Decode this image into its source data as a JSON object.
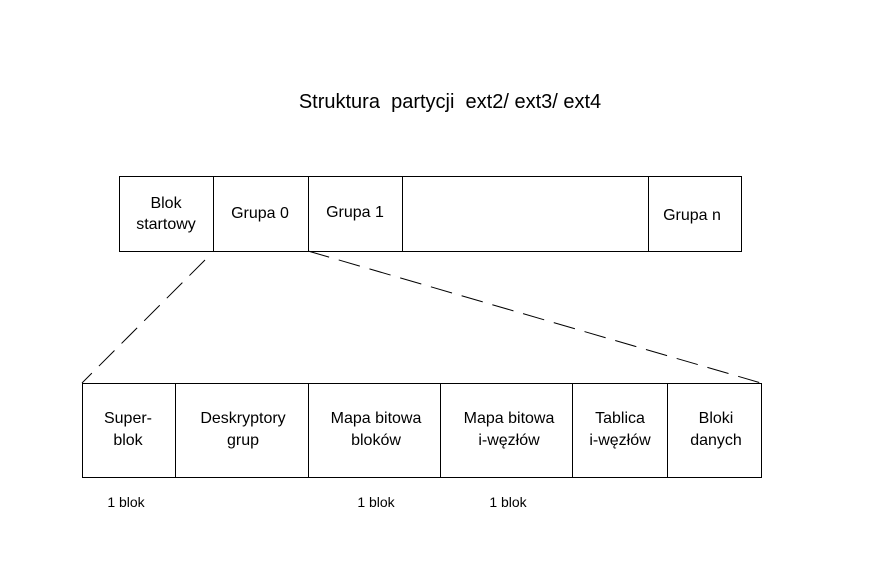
{
  "title": "Struktura  partycji  ext2/ ext3/ ext4",
  "partition": [
    {
      "lines": [
        "Blok",
        "startowy"
      ]
    },
    {
      "lines": [
        "Grupa 0"
      ]
    },
    {
      "lines": [
        "Grupa 1"
      ]
    },
    {
      "lines": [
        "Grupa n"
      ]
    }
  ],
  "group": [
    {
      "lines": [
        "Super-",
        "blok"
      ]
    },
    {
      "lines": [
        "Deskryptory",
        "grup"
      ]
    },
    {
      "lines": [
        "Mapa bitowa",
        "bloków"
      ]
    },
    {
      "lines": [
        "Mapa bitowa",
        "i-węzłów"
      ]
    },
    {
      "lines": [
        "Tablica",
        "i-węzłów"
      ]
    },
    {
      "lines": [
        "Bloki",
        "danych"
      ]
    }
  ],
  "sizes": [
    "1 blok",
    "1 blok",
    "1 blok"
  ]
}
